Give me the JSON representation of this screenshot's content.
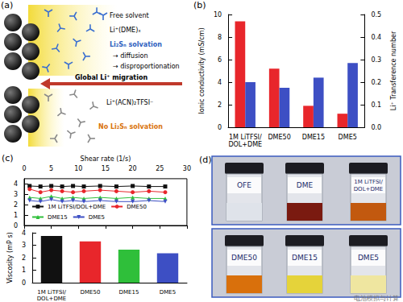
{
  "panel_labels": {
    "a": "(a)",
    "b": "(b)",
    "c": "(c)",
    "d": "(d)"
  },
  "diagram": {
    "free_solvent": "Free solvent",
    "solvated_li": "Li⁺(DME)ₓ",
    "solvation": "Li₂Sₙ solvation",
    "diffusion": "→ diffusion",
    "disproportionation": "→ disproportionation",
    "migration": "Global Li⁺ migration",
    "ion_pair": "Li⁺(ACN)₂TFSI⁻",
    "no_solvation": "No Li₂Sₙ solvation"
  },
  "photos": {
    "rows": [
      [
        "OFE",
        "DME",
        "1M LiTFSI/DOL+DME"
      ],
      [
        "DME50",
        "DME15",
        "DME5"
      ]
    ]
  },
  "watermark": "电池模拟与计算",
  "chart_data": [
    {
      "type": "bar",
      "categories": [
        "1M LiTFSI/DOL+DME",
        "DME50",
        "DME15",
        "DME5"
      ],
      "ylabel": "Ionic conductivity (mS/cm)",
      "y2label": "Li⁺ Transference number",
      "ylim": [
        0,
        10
      ],
      "yticks": [
        0,
        2,
        4,
        6,
        8,
        10
      ],
      "y2lim": [
        0,
        0.5
      ],
      "y2ticks": [
        {
          "value": 0,
          "label": "0.0"
        },
        0.1,
        0.2,
        0.3,
        0.4,
        0.5
      ],
      "series": [
        {
          "color": "#e8262b",
          "values": [
            9.4,
            5.2,
            1.9,
            1.2
          ]
        },
        {
          "color": "#3d4fc4",
          "values": [
            0.2,
            0.175,
            0.22,
            0.285
          ],
          "axis": "y2"
        }
      ]
    },
    {
      "type": "line",
      "x": [
        1,
        3,
        5,
        7,
        9,
        11,
        14,
        17,
        20,
        23,
        26
      ],
      "xlabel": "Shear rate (1/s)",
      "xlim": [
        0,
        30
      ],
      "xticks": [
        0,
        5,
        10,
        15,
        20,
        25,
        30
      ],
      "ylim": [
        0,
        4.5
      ],
      "yticks": [
        0,
        1,
        2,
        3,
        4
      ],
      "legend": "lower left",
      "series": [
        {
          "name": "1M LiTFSI/DOL+DME",
          "color": "#111111",
          "marker": "square",
          "values": [
            3.8,
            3.75,
            3.8,
            3.75,
            3.8,
            3.75,
            3.8,
            3.75,
            3.8,
            3.75,
            3.75
          ]
        },
        {
          "name": "DME50",
          "color": "#e8262b",
          "marker": "circle",
          "values": [
            3.5,
            3.2,
            3.4,
            3.3,
            3.2,
            3.3,
            3.4,
            3.3,
            3.2,
            3.3,
            3.2
          ]
        },
        {
          "name": "DME15",
          "color": "#2fbf3a",
          "marker": "triangle",
          "values": [
            2.7,
            2.6,
            2.8,
            2.6,
            2.7,
            2.6,
            2.7,
            2.6,
            2.7,
            2.6,
            2.6
          ]
        },
        {
          "name": "DME5",
          "color": "#3d4fc4",
          "marker": "triangle-down",
          "values": [
            2.4,
            2.3,
            2.5,
            2.3,
            2.4,
            2.3,
            2.4,
            2.3,
            2.3,
            2.4,
            2.3
          ]
        }
      ]
    },
    {
      "type": "bar",
      "categories": [
        "1M LiTFSI/DOL+DME",
        "DME50",
        "DME15",
        "DME5"
      ],
      "ylabel": "Viscosity (mP s)",
      "ylim": [
        0,
        4
      ],
      "yticks": [
        0,
        1,
        2,
        3,
        4
      ],
      "colors": [
        "#111111",
        "#e8262b",
        "#2fbf3a",
        "#3d4fc4"
      ],
      "values": [
        3.75,
        3.3,
        2.65,
        2.35
      ]
    }
  ]
}
